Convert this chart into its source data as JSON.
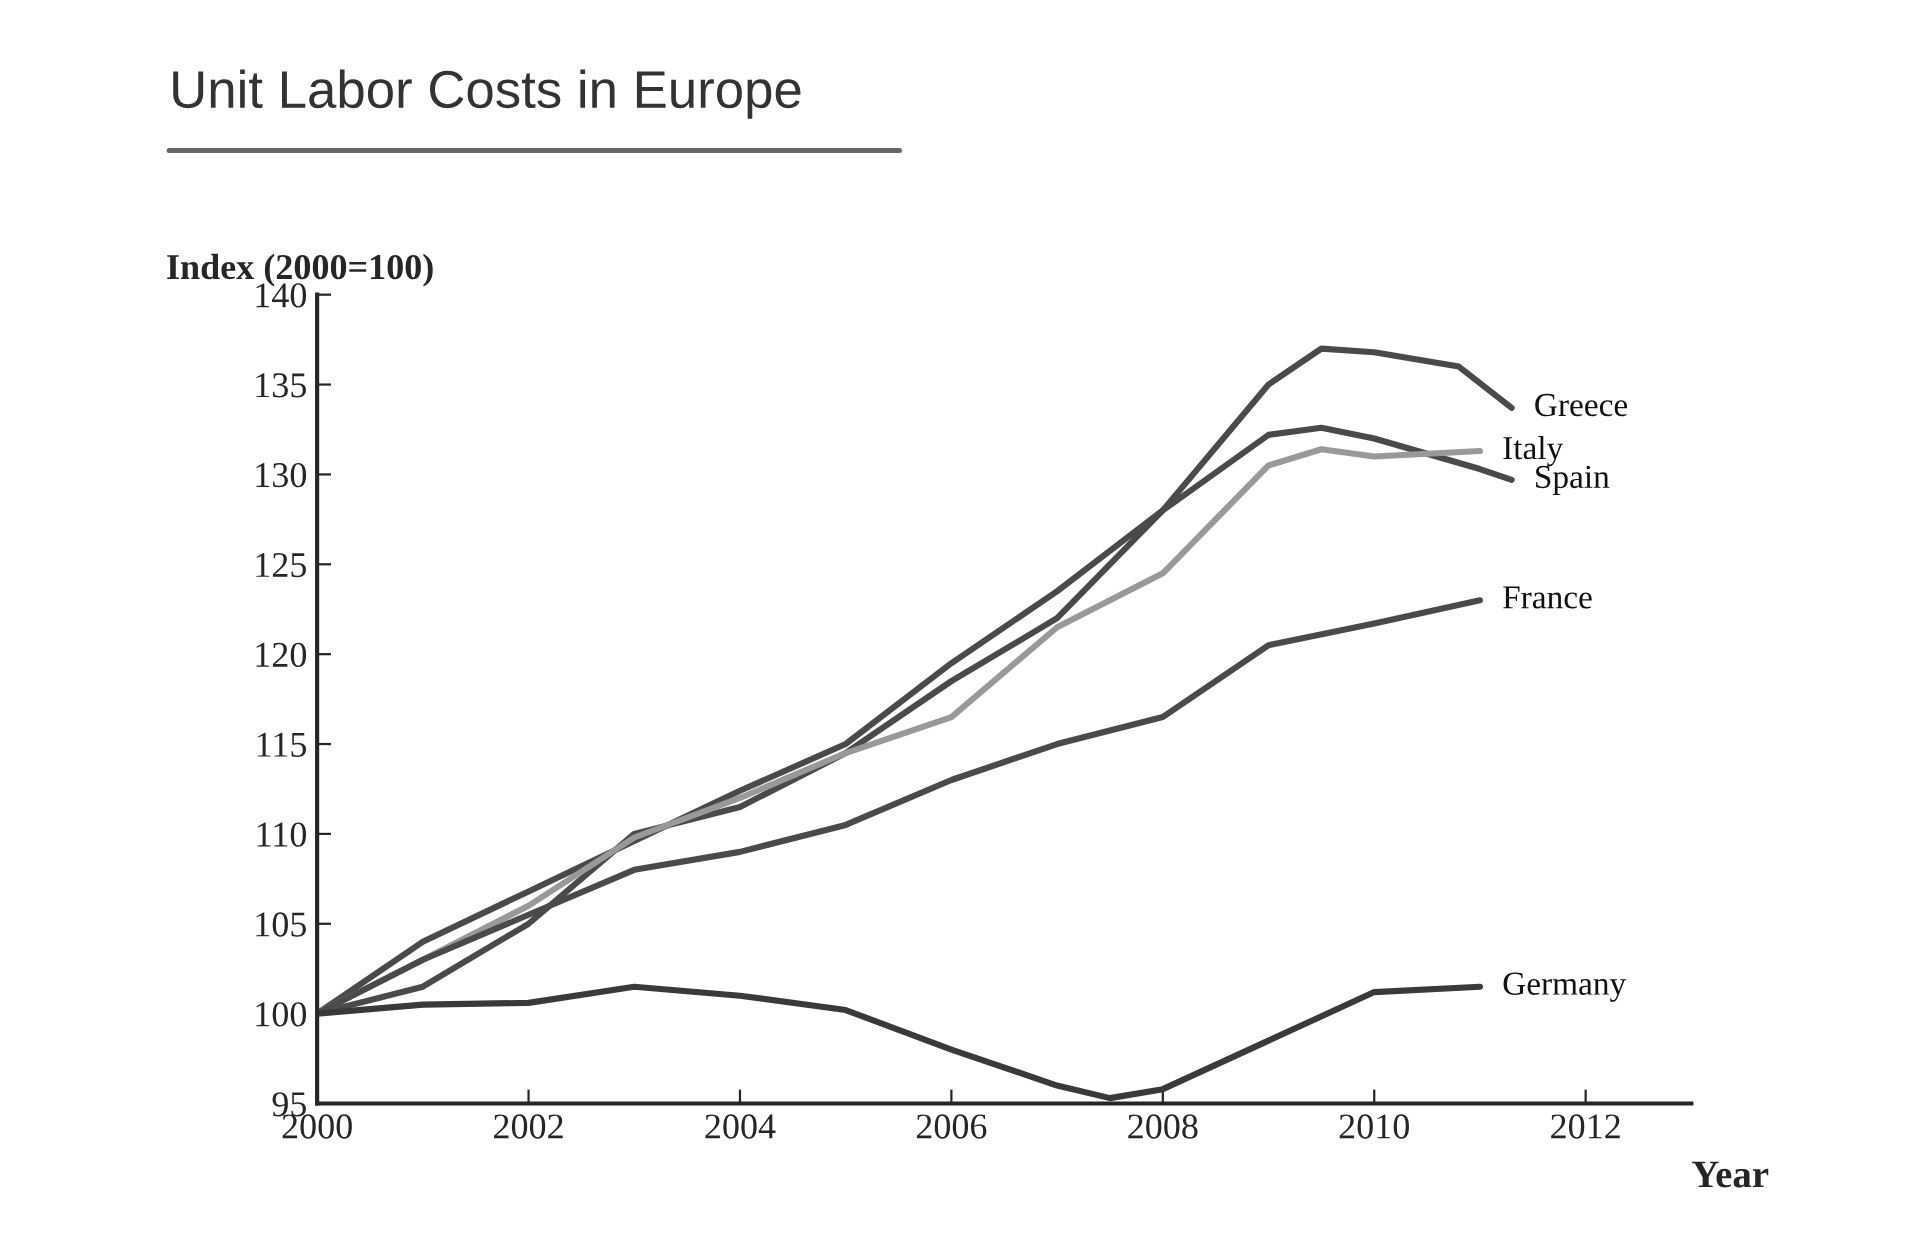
{
  "chart_data": {
    "type": "line",
    "title": "Unit Labor Costs in Europe",
    "xlabel": "Year",
    "ylabel": "Index (2000=100)",
    "xlim": [
      2000,
      2013
    ],
    "xticks": [
      2000,
      2002,
      2004,
      2006,
      2008,
      2010,
      2012
    ],
    "ylim": [
      95,
      140
    ],
    "yticks": [
      95,
      100,
      105,
      110,
      115,
      120,
      125,
      130,
      135,
      140
    ],
    "grid": false,
    "legend": false,
    "marker": "none",
    "line_style": "solid",
    "series": [
      {
        "name": "Greece",
        "color": "#4a4a4a",
        "x": [
          2000,
          2001,
          2002,
          2003,
          2004,
          2005,
          2006,
          2007,
          2008,
          2009,
          2009.5,
          2010,
          2010.8,
          2011.3
        ],
        "values": [
          100,
          101.5,
          105,
          110,
          111.5,
          114.5,
          118.5,
          122,
          128,
          135,
          137,
          136.8,
          136,
          133.7
        ]
      },
      {
        "name": "Spain",
        "color": "#4a4a4a",
        "x": [
          2000,
          2001,
          2002,
          2003,
          2004,
          2005,
          2006,
          2007,
          2008,
          2009,
          2009.5,
          2010,
          2011,
          2011.3
        ],
        "values": [
          100,
          104,
          106.8,
          109.6,
          112.4,
          115,
          119.5,
          123.5,
          128,
          132.2,
          132.6,
          132,
          130.3,
          129.7
        ]
      },
      {
        "name": "Italy",
        "color": "#999999",
        "x": [
          2000,
          2001,
          2002,
          2003,
          2004,
          2005,
          2006,
          2007,
          2008,
          2009,
          2009.5,
          2010,
          2011
        ],
        "values": [
          100,
          103,
          106,
          109.8,
          112,
          114.5,
          116.5,
          121.5,
          124.5,
          130.5,
          131.4,
          131,
          131.3
        ]
      },
      {
        "name": "France",
        "color": "#4a4a4a",
        "x": [
          2000,
          2001,
          2002,
          2003,
          2004,
          2005,
          2006,
          2007,
          2008,
          2009,
          2010,
          2011
        ],
        "values": [
          100,
          103,
          105.5,
          108,
          109,
          110.5,
          113,
          115,
          116.5,
          120.5,
          121.7,
          123
        ]
      },
      {
        "name": "Germany",
        "color": "#3a3a3a",
        "x": [
          2000,
          2001,
          2002,
          2003,
          2004,
          2005,
          2006,
          2007,
          2007.5,
          2008,
          2009,
          2010,
          2011
        ],
        "values": [
          100,
          100.5,
          100.6,
          101.5,
          101,
          100.2,
          98,
          96,
          95.3,
          95.8,
          98.5,
          101.2,
          101.5
        ]
      }
    ]
  }
}
